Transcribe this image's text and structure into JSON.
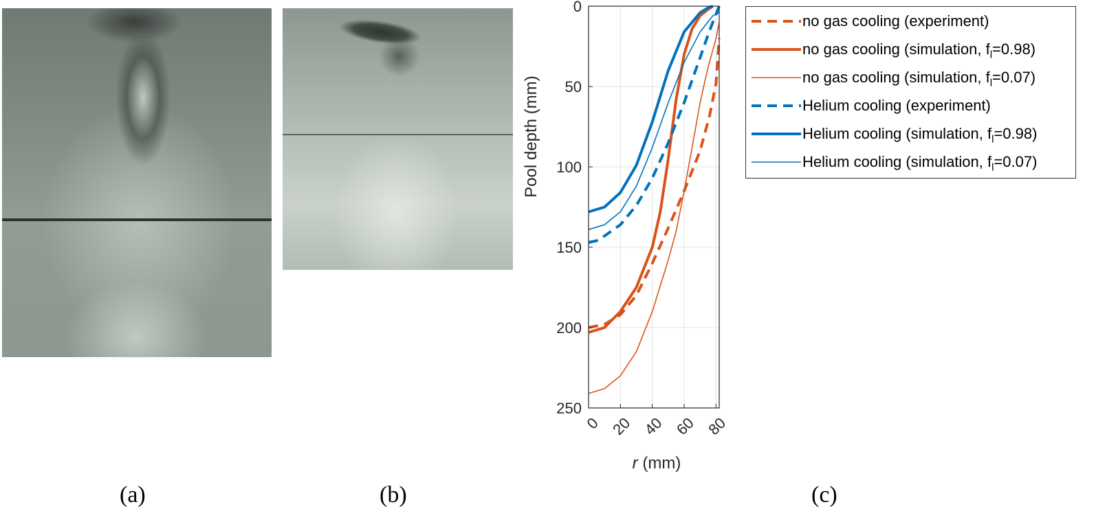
{
  "panels": {
    "a": "(a)",
    "b": "(b)",
    "c": "(c)"
  },
  "chart_data": {
    "type": "line",
    "xlabel_italic": "r",
    "xlabel_unit": " (mm)",
    "ylabel": "Pool depth (mm)",
    "xlim": [
      0,
      82
    ],
    "ylim": [
      0,
      250
    ],
    "y_reversed": true,
    "xticks": [
      "0",
      "20",
      "40",
      "60",
      "80"
    ],
    "yticks": [
      "0",
      "50",
      "100",
      "150",
      "200",
      "250"
    ],
    "grid": true,
    "legend_position": "outside-right",
    "series": [
      {
        "name": "no gas cooling (experiment)",
        "color": "#D95319",
        "style": "dashed",
        "width": "thick",
        "x": [
          0,
          10,
          20,
          30,
          40,
          50,
          60,
          70,
          76,
          80,
          82
        ],
        "y": [
          200,
          198,
          192,
          180,
          160,
          138,
          115,
          90,
          68,
          48,
          20
        ]
      },
      {
        "name": "no gas cooling (simulation, f",
        "sub": "l",
        "suffix": "=0.98)",
        "color": "#D95319",
        "style": "solid",
        "width": "thick",
        "x": [
          0,
          10,
          20,
          30,
          40,
          45,
          50,
          55,
          60,
          65,
          70,
          75,
          78
        ],
        "y": [
          203,
          200,
          190,
          175,
          150,
          128,
          95,
          58,
          30,
          14,
          6,
          2,
          0
        ]
      },
      {
        "name": "no gas cooling (simulation, f",
        "sub": "l",
        "suffix": "=0.07)",
        "color": "#D95319",
        "style": "solid",
        "width": "thin",
        "x": [
          0,
          10,
          20,
          30,
          40,
          50,
          55,
          60,
          65,
          70,
          75,
          80,
          82
        ],
        "y": [
          241,
          238,
          230,
          215,
          190,
          158,
          140,
          115,
          88,
          60,
          38,
          20,
          10
        ]
      },
      {
        "name": "Helium cooling (experiment)",
        "color": "#0072BD",
        "style": "dashed",
        "width": "thick",
        "x": [
          0,
          5,
          10,
          20,
          30,
          40,
          50,
          60,
          70,
          76,
          80,
          82
        ],
        "y": [
          147,
          146,
          143,
          136,
          124,
          107,
          85,
          60,
          32,
          15,
          5,
          0
        ]
      },
      {
        "name": "Helium cooling (simulation, f",
        "sub": "l",
        "suffix": "=0.98)",
        "color": "#0072BD",
        "style": "solid",
        "width": "thick",
        "x": [
          0,
          10,
          20,
          30,
          40,
          50,
          60,
          70,
          75,
          78
        ],
        "y": [
          128,
          125,
          116,
          99,
          72,
          40,
          16,
          4,
          1,
          0
        ]
      },
      {
        "name": "Helium cooling (simulation, f",
        "sub": "l",
        "suffix": "=0.07)",
        "color": "#0072BD",
        "style": "solid",
        "width": "thin",
        "x": [
          0,
          10,
          20,
          30,
          40,
          50,
          60,
          70,
          78,
          82
        ],
        "y": [
          139,
          136,
          128,
          112,
          88,
          60,
          35,
          16,
          6,
          4
        ]
      }
    ]
  }
}
